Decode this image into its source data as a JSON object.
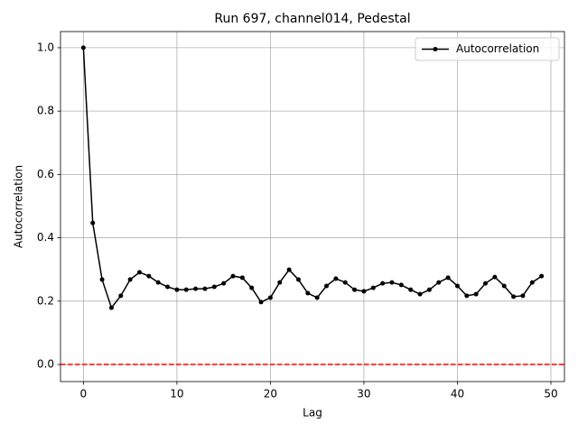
{
  "chart_data": {
    "type": "line",
    "title": "Run 697, channel014, Pedestal",
    "x_label": "Lag",
    "y_label": "Autocorrelation",
    "x": [
      0,
      1,
      2,
      3,
      4,
      5,
      6,
      7,
      8,
      9,
      10,
      11,
      12,
      13,
      14,
      15,
      16,
      17,
      18,
      19,
      20,
      21,
      22,
      23,
      24,
      25,
      26,
      27,
      28,
      29,
      30,
      31,
      32,
      33,
      34,
      35,
      36,
      37,
      38,
      39,
      40,
      41,
      42,
      43,
      44,
      45,
      46,
      47,
      48,
      49
    ],
    "series": [
      {
        "name": "Autocorrelation",
        "color": "#000000",
        "values": [
          1.0,
          0.447,
          0.268,
          0.179,
          0.217,
          0.268,
          0.291,
          0.279,
          0.259,
          0.245,
          0.236,
          0.236,
          0.239,
          0.239,
          0.245,
          0.256,
          0.279,
          0.274,
          0.242,
          0.197,
          0.211,
          0.259,
          0.299,
          0.268,
          0.225,
          0.211,
          0.248,
          0.271,
          0.259,
          0.236,
          0.231,
          0.242,
          0.256,
          0.259,
          0.251,
          0.236,
          0.222,
          0.236,
          0.259,
          0.274,
          0.248,
          0.217,
          0.222,
          0.256,
          0.276,
          0.248,
          0.214,
          0.217,
          0.259,
          0.279
        ]
      }
    ],
    "hline": {
      "value": 0,
      "color": "#ff0000"
    },
    "xlim": [
      -2.45,
      51.45
    ],
    "ylim": [
      -0.054,
      1.051
    ],
    "xticks": [
      0,
      10,
      20,
      30,
      40,
      50
    ],
    "yticks": [
      {
        "value": 0,
        "label": "0.0"
      },
      {
        "value": 0.2,
        "label": "0.2"
      },
      {
        "value": 0.4,
        "label": "0.4"
      },
      {
        "value": 0.6,
        "label": "0.6"
      },
      {
        "value": 0.8,
        "label": "0.8"
      },
      {
        "value": 1.0,
        "label": "1.0"
      }
    ],
    "grid": true,
    "legend": "upper right"
  }
}
